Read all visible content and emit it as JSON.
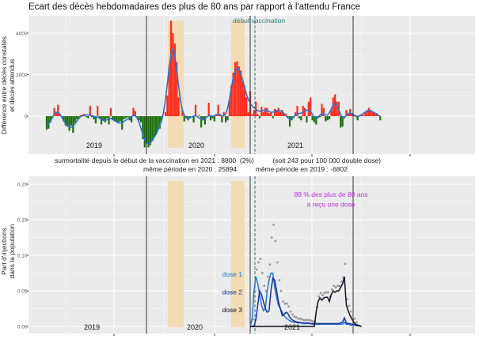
{
  "chart_data": [
    {
      "type": "bar",
      "title": "Ecart des décès hebdomadaires des plus de 80 ans par rapport à l'attendu France",
      "ylabel": [
        "Différence entre décès constatés",
        "et décès attendus"
      ],
      "yticks": [
        0,
        2000,
        4000
      ],
      "ylim": [
        -1700,
        4800
      ],
      "year_labels": [
        "2019",
        "2020",
        "2021"
      ],
      "annotation": "début vaccination",
      "colors": {
        "positive": "#ff2a1a",
        "negative": "#1e6e0e",
        "smooth": "#2a72d0",
        "band": "#f3dcb3",
        "vaccination": "#2f7a7a"
      },
      "weekly_excess": [
        -650,
        -600,
        -300,
        -100,
        400,
        150,
        550,
        100,
        -50,
        -250,
        -450,
        -500,
        -700,
        -450,
        -800,
        -300,
        -150,
        -100,
        50,
        80,
        120,
        -50,
        -100,
        500,
        -50,
        -150,
        -350,
        500,
        -100,
        -400,
        -200,
        -300,
        -100,
        -400,
        400,
        -200,
        -250,
        -300,
        -350,
        -250,
        -650,
        -150,
        -100,
        -50,
        -200,
        -300,
        400,
        250,
        -50,
        -200,
        -300,
        -1100,
        -1500,
        -1300,
        -1500,
        -1400,
        -1200,
        -1000,
        -900,
        -700,
        -600,
        -200,
        0,
        200,
        1000,
        2400,
        4600,
        4000,
        3500,
        2600,
        900,
        0,
        300,
        -250,
        -100,
        -200,
        -50,
        0,
        -300,
        550,
        -50,
        50,
        -550,
        -150,
        -400,
        0,
        650,
        -200,
        -100,
        -250,
        100,
        550,
        100,
        -300,
        200,
        -300,
        -200,
        800,
        1500,
        2100,
        2600,
        2650,
        2400,
        2200,
        1700,
        1500,
        900,
        200,
        1200,
        100,
        300,
        700,
        100,
        -100,
        450,
        200,
        400,
        400,
        150,
        200,
        -100,
        350,
        300,
        400,
        200,
        300,
        150,
        100,
        -50,
        -500,
        -200,
        -100,
        200,
        500,
        -100,
        -200,
        500,
        400,
        -300,
        700,
        900,
        -200,
        -300,
        -400,
        -100,
        -50,
        600,
        400,
        -250,
        -200,
        -150,
        300,
        900,
        1050,
        700,
        700,
        -550,
        -500,
        -100,
        300,
        100,
        350,
        150,
        50,
        -50,
        -200,
        50,
        100,
        50,
        200,
        300,
        400,
        300,
        200,
        150,
        150,
        50,
        -200
      ],
      "summary": {
        "line1": "surmortalité depuis le début de la vaccination en 2021 : 8800  (2%)          (soit 243 pour 100 000 double dose)",
        "line2": "même période en 2020 : 25894          même période en 2019 : -6802"
      }
    },
    {
      "type": "line",
      "ylabel": [
        "Part d'injections",
        "dans la population"
      ],
      "yticks": [
        "0.00",
        "0.05",
        "0.10",
        "0.15",
        "0.20"
      ],
      "ylim": [
        0,
        0.2
      ],
      "year_labels": [
        "2019",
        "2020",
        "2021"
      ],
      "annotation": [
        "89 % des plus de 80 ans",
        "a reçu une dose"
      ],
      "start_week_index": 108,
      "series": [
        {
          "name": "dose 1",
          "color": "#1f78d8",
          "values": [
            0,
            0.01,
            0.05,
            0.07,
            0.06,
            0.045,
            0.03,
            0.022,
            0.025,
            0.05,
            0.065,
            0.075,
            0.075,
            0.055,
            0.04,
            0.03,
            0.025,
            0.02,
            0.015,
            0.012,
            0.01,
            0.008,
            0.007,
            0.006,
            0.006,
            0.005,
            0.005,
            0.005,
            0.004,
            0.004,
            0.004,
            0.004,
            0.004,
            0.003,
            0.003,
            0.003,
            0.003,
            0.003,
            0.003,
            0.003,
            0.003,
            0.003,
            0.003,
            0.003,
            0.003,
            0.003,
            0.003,
            0.003,
            0.003,
            0.003,
            0.006,
            0.003,
            0.003,
            0.002,
            0.002,
            0.002,
            0.001,
            0.001,
            0.001,
            0
          ]
        },
        {
          "name": "dose 2",
          "color": "#1a3199",
          "values": [
            0,
            0,
            0,
            0.01,
            0.03,
            0.05,
            0.045,
            0.035,
            0.025,
            0.02,
            0.022,
            0.05,
            0.068,
            0.065,
            0.05,
            0.035,
            0.025,
            0.015,
            0.017,
            0.02,
            0.018,
            0.013,
            0.01,
            0.008,
            0.007,
            0.006,
            0.006,
            0.005,
            0.005,
            0.005,
            0.005,
            0.005,
            0.004,
            0.004,
            0.004,
            0.004,
            0.004,
            0.004,
            0.004,
            0.004,
            0.004,
            0.004,
            0.004,
            0.004,
            0.004,
            0.004,
            0.004,
            0.004,
            0.005,
            0.006,
            0.012,
            0.005,
            0.004,
            0.004,
            0.003,
            0.003,
            0.002,
            0.001,
            0.001,
            0
          ]
        },
        {
          "name": "dose 3",
          "color": "#101020",
          "values": [
            0,
            0,
            0,
            0,
            0,
            0,
            0,
            0,
            0,
            0,
            0,
            0,
            0,
            0,
            0,
            0,
            0,
            0,
            0,
            0,
            0,
            0,
            0,
            0,
            0,
            0,
            0,
            0,
            0,
            0,
            0,
            0,
            0,
            0,
            0,
            0.02,
            0.035,
            0.04,
            0.037,
            0.04,
            0.041,
            0.041,
            0.035,
            0.045,
            0.05,
            0.048,
            0.05,
            0.05,
            0.055,
            0.06,
            0.07,
            0.03,
            0.022,
            0.015,
            0.01,
            0.006,
            0.003,
            0.002,
            0.001,
            0
          ]
        }
      ],
      "total_color": "#999999"
    }
  ]
}
